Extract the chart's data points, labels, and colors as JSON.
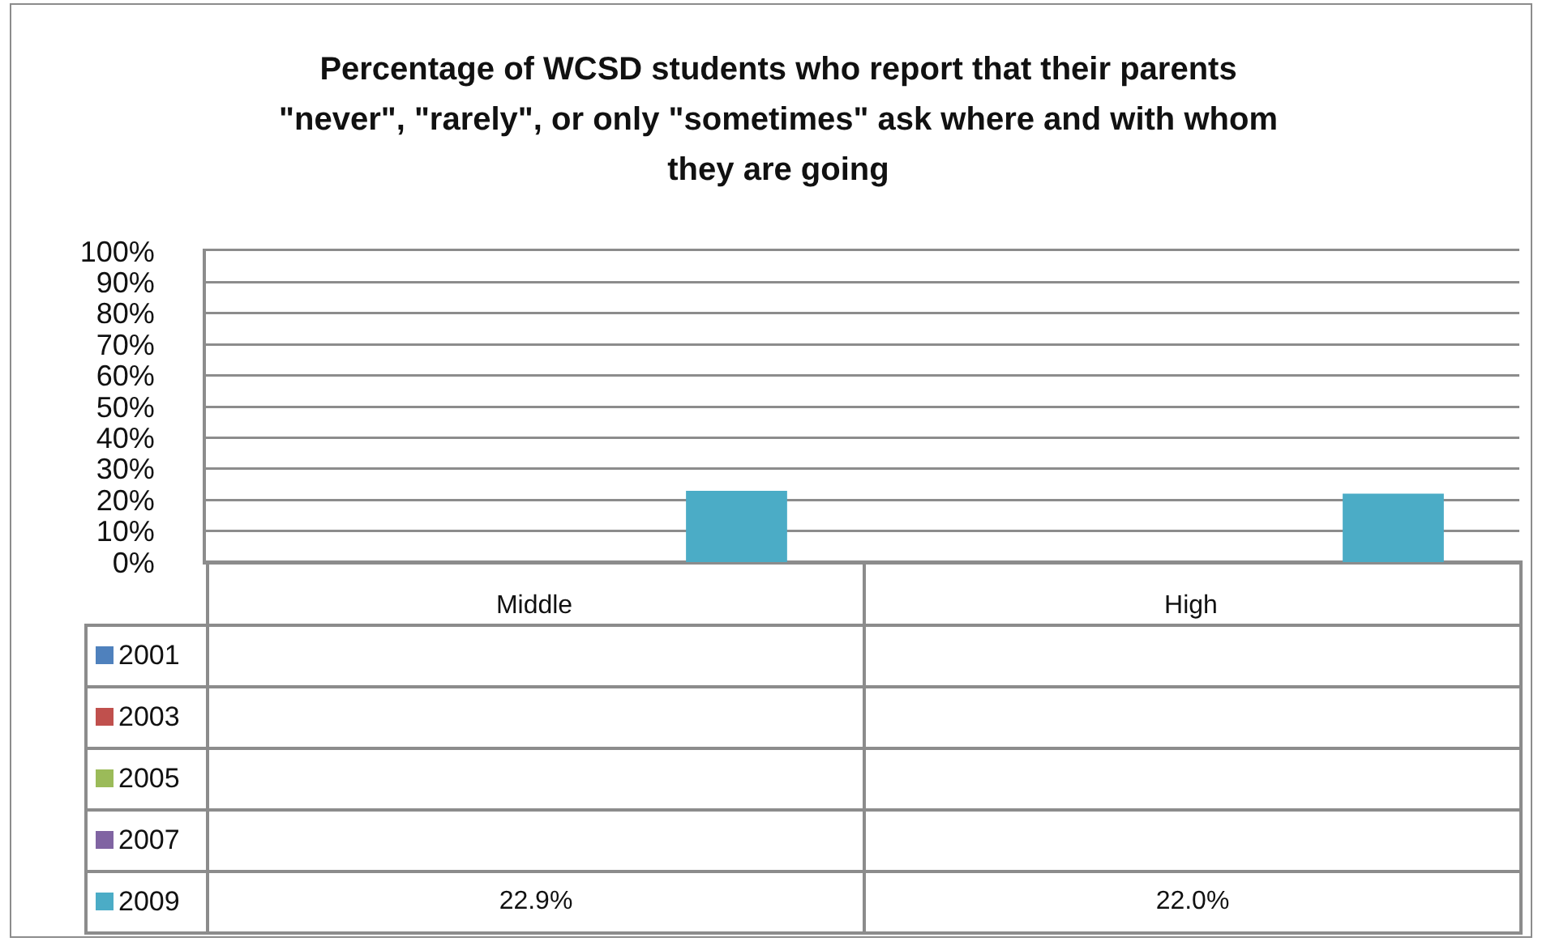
{
  "chart_data": {
    "type": "bar",
    "title": "Percentage of WCSD students who report that their parents \"never\", \"rarely\", or only \"sometimes\" ask where and with whom they are going",
    "categories": [
      "Middle",
      "High"
    ],
    "series": [
      {
        "name": "2001",
        "color": "#4f81bd",
        "values": [
          null,
          null
        ]
      },
      {
        "name": "2003",
        "color": "#c0504d",
        "values": [
          null,
          null
        ]
      },
      {
        "name": "2005",
        "color": "#9bbb59",
        "values": [
          null,
          null
        ]
      },
      {
        "name": "2007",
        "color": "#8064a2",
        "values": [
          null,
          null
        ]
      },
      {
        "name": "2009",
        "color": "#4bacc6",
        "values": [
          22.9,
          22.0
        ],
        "value_labels": [
          "22.9%",
          "22.0%"
        ]
      }
    ],
    "ylim": [
      0,
      100
    ],
    "yticks": [
      {
        "value": 0,
        "label": "0%"
      },
      {
        "value": 10,
        "label": "10%"
      },
      {
        "value": 20,
        "label": "20%"
      },
      {
        "value": 30,
        "label": "30%"
      },
      {
        "value": 40,
        "label": "40%"
      },
      {
        "value": 50,
        "label": "50%"
      },
      {
        "value": 60,
        "label": "60%"
      },
      {
        "value": 70,
        "label": "70%"
      },
      {
        "value": 80,
        "label": "80%"
      },
      {
        "value": 90,
        "label": "90%"
      },
      {
        "value": 100,
        "label": "100%"
      }
    ],
    "grid": "y",
    "legend": "bottom"
  }
}
